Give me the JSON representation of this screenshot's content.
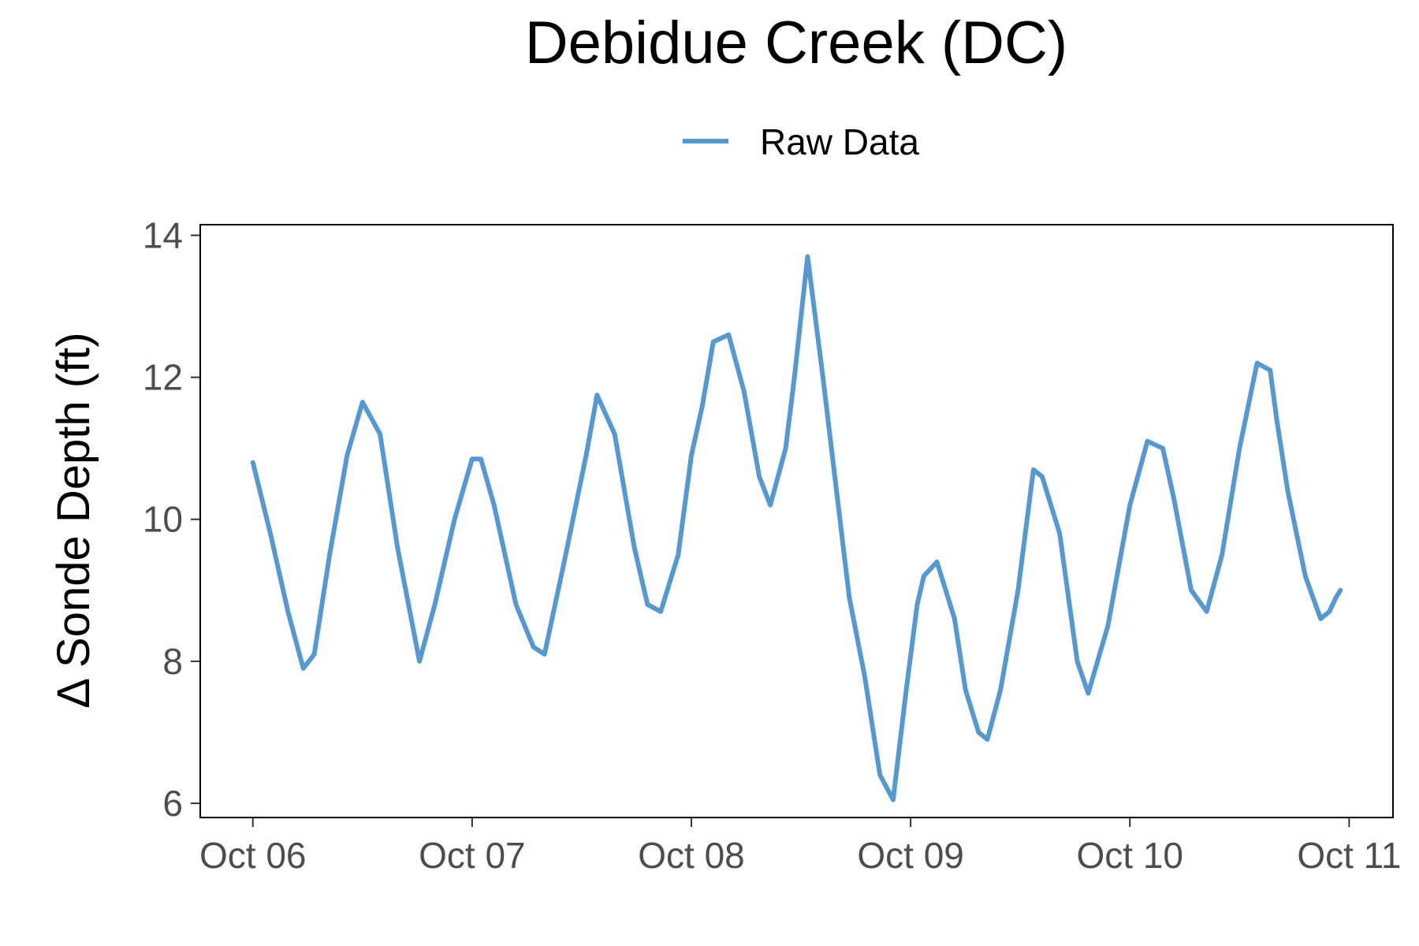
{
  "chart_data": {
    "type": "line",
    "title": "Debidue Creek (DC)",
    "xlabel": "",
    "ylabel": "Δ Sonde Depth (ft)",
    "legend": {
      "position": "top",
      "entries": [
        "Raw Data"
      ]
    },
    "grid": false,
    "x_tick_labels": [
      "Oct 06",
      "Oct 07",
      "Oct 08",
      "Oct 09",
      "Oct 10",
      "Oct 11"
    ],
    "y_ticks": [
      6,
      8,
      10,
      12,
      14
    ],
    "xlim": [
      -0.24,
      5.2
    ],
    "ylim": [
      5.8,
      14.15
    ],
    "series": [
      {
        "name": "Raw Data",
        "color": "#5499d1",
        "x": [
          0.0,
          0.08,
          0.16,
          0.23,
          0.28,
          0.35,
          0.43,
          0.5,
          0.58,
          0.66,
          0.76,
          0.83,
          0.92,
          1.0,
          1.04,
          1.1,
          1.2,
          1.28,
          1.33,
          1.42,
          1.52,
          1.57,
          1.65,
          1.74,
          1.8,
          1.86,
          1.94,
          2.0,
          2.05,
          2.1,
          2.17,
          2.24,
          2.31,
          2.36,
          2.43,
          2.47,
          2.53,
          2.6,
          2.67,
          2.72,
          2.79,
          2.86,
          2.92,
          2.98,
          3.03,
          3.06,
          3.12,
          3.2,
          3.25,
          3.31,
          3.35,
          3.41,
          3.49,
          3.56,
          3.6,
          3.68,
          3.76,
          3.81,
          3.9,
          4.0,
          4.08,
          4.15,
          4.2,
          4.28,
          4.35,
          4.42,
          4.5,
          4.58,
          4.64,
          4.67,
          4.72,
          4.8,
          4.87,
          4.91,
          4.94,
          4.96
        ],
        "values": [
          10.8,
          9.8,
          8.7,
          7.9,
          8.1,
          9.5,
          10.9,
          11.65,
          11.2,
          9.6,
          8.0,
          8.8,
          10.0,
          10.85,
          10.85,
          10.2,
          8.8,
          8.2,
          8.1,
          9.4,
          10.9,
          11.75,
          11.2,
          9.6,
          8.8,
          8.7,
          9.5,
          10.9,
          11.6,
          12.5,
          12.6,
          11.8,
          10.6,
          10.2,
          11.0,
          12.0,
          13.7,
          12.0,
          10.2,
          8.9,
          7.8,
          6.4,
          6.05,
          7.6,
          8.8,
          9.2,
          9.4,
          8.6,
          7.6,
          7.0,
          6.9,
          7.6,
          9.0,
          10.7,
          10.6,
          9.8,
          8.0,
          7.55,
          8.5,
          10.2,
          11.1,
          11.0,
          10.3,
          9.0,
          8.7,
          9.5,
          11.0,
          12.2,
          12.1,
          11.4,
          10.4,
          9.2,
          8.6,
          8.7,
          8.9,
          9.0
        ]
      }
    ]
  }
}
